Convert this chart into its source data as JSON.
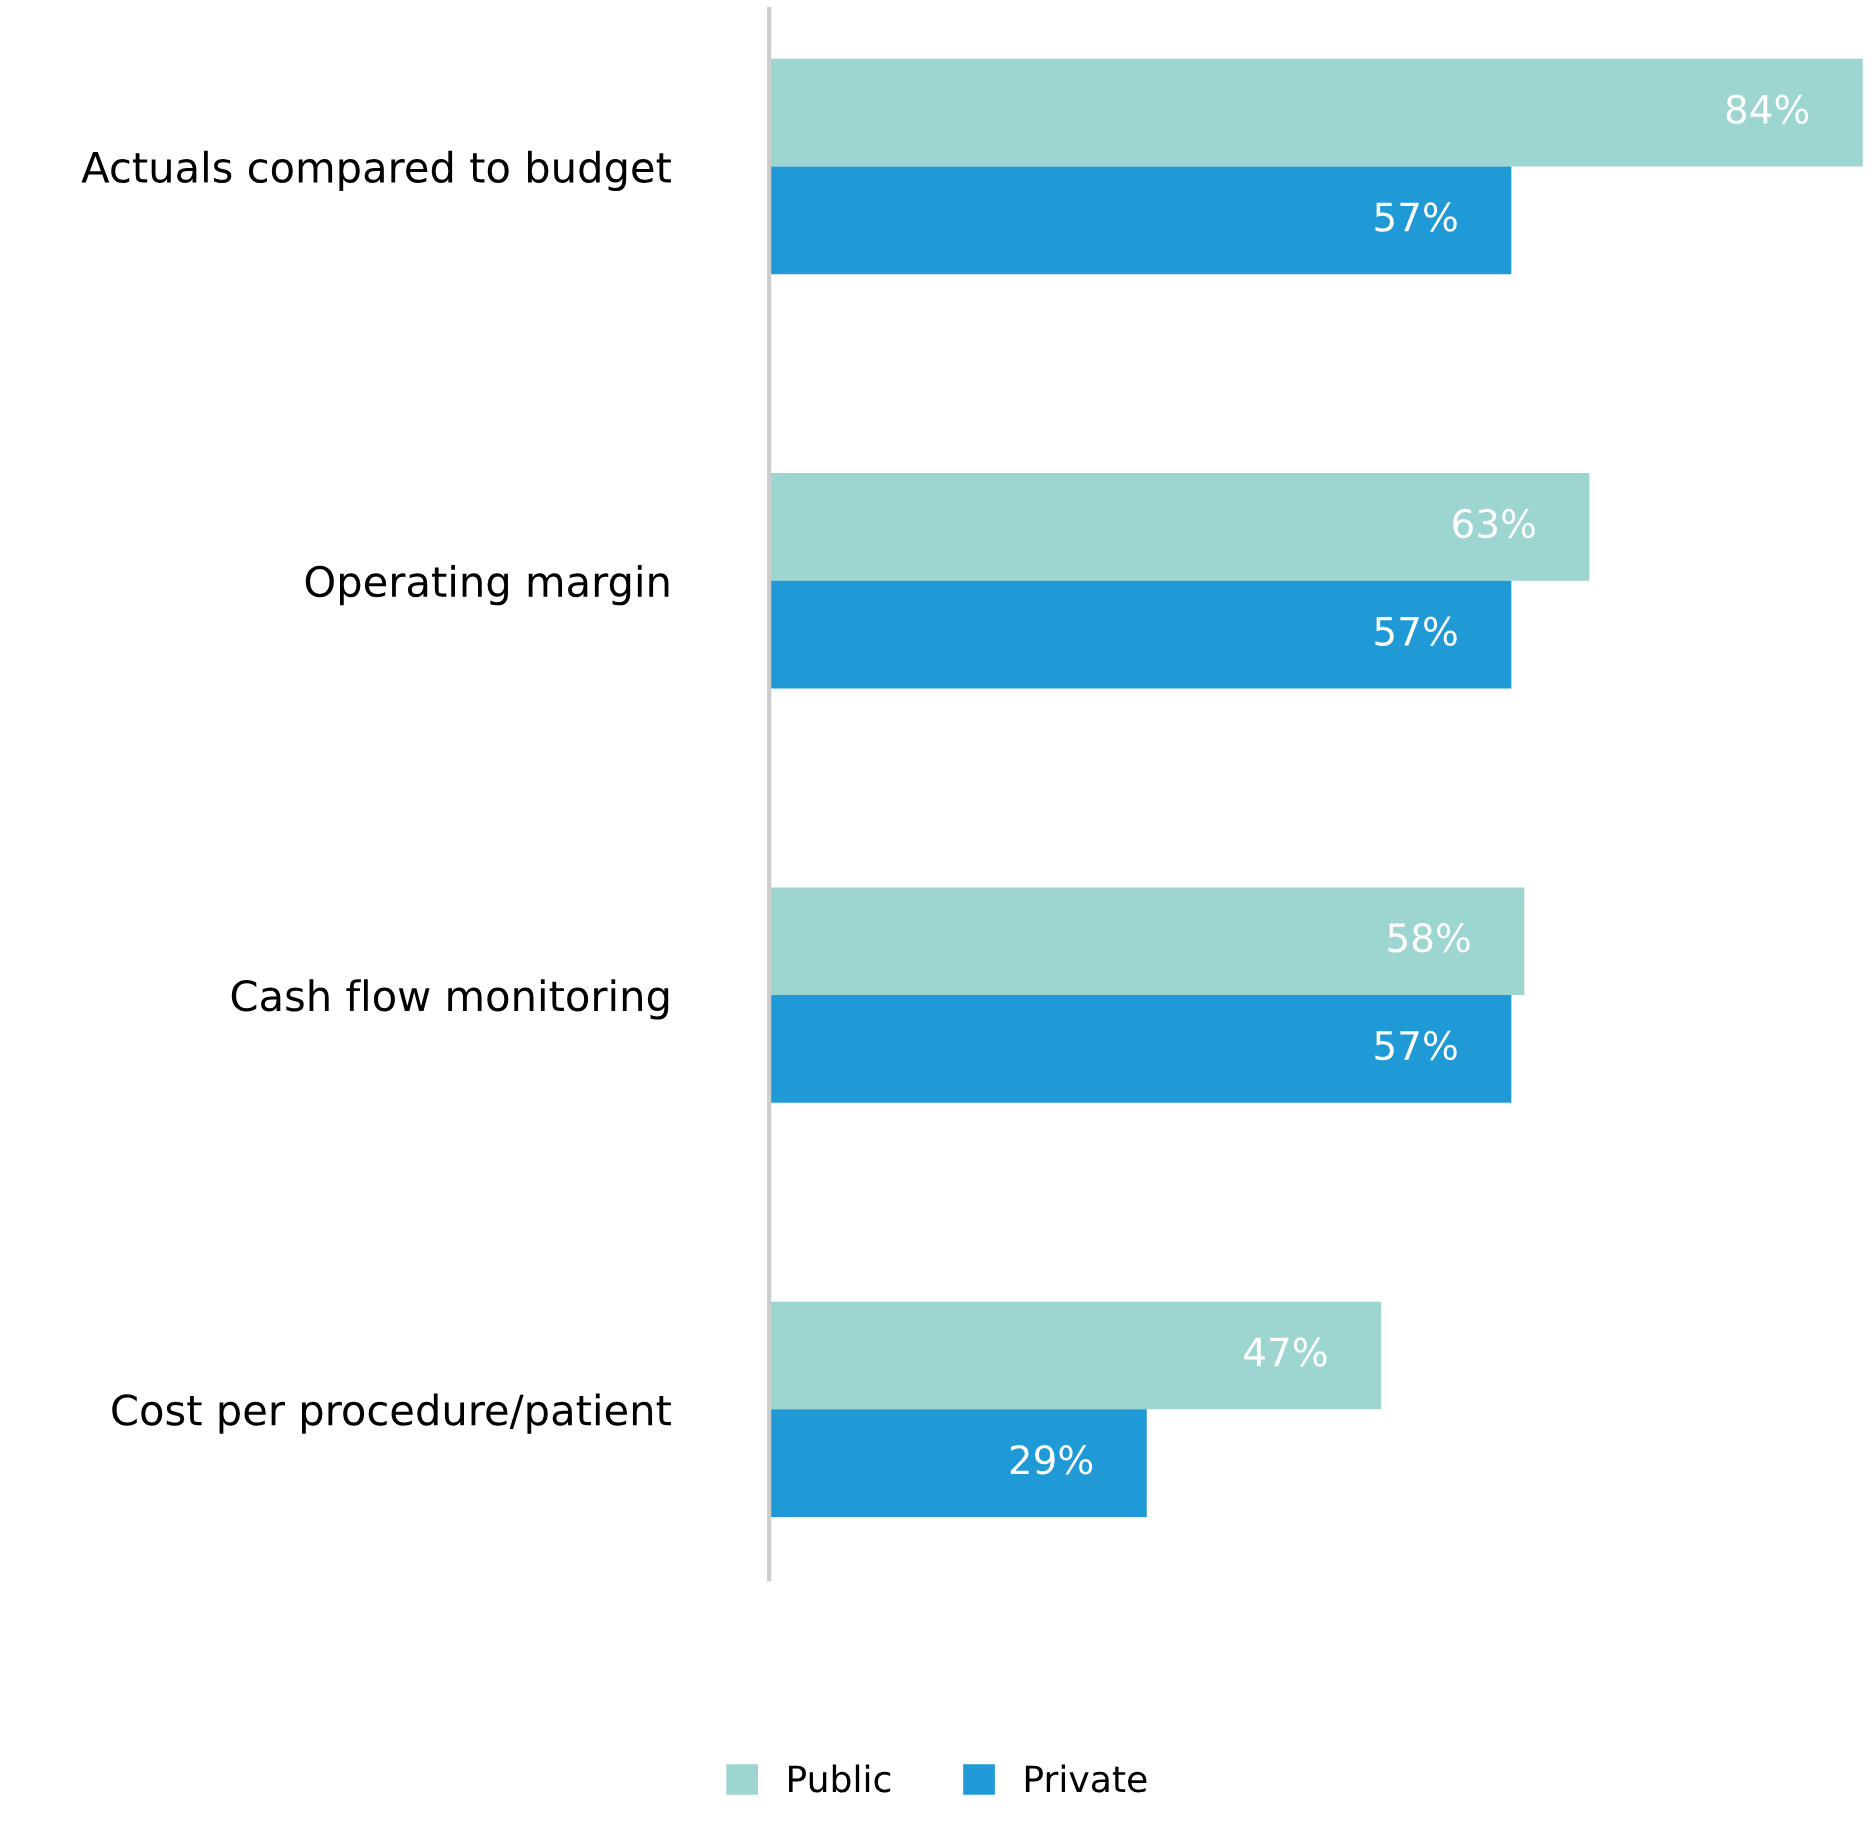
{
  "chart_data": {
    "type": "bar",
    "orientation": "horizontal",
    "categories": [
      "Actuals compared to budget",
      "Operating margin",
      "Cash flow monitoring",
      "Cost per procedure/patient"
    ],
    "series": [
      {
        "name": "Public",
        "color": "#9dd5d0",
        "values": [
          84,
          63,
          58,
          47
        ],
        "value_labels": [
          "84%",
          "63%",
          "58%",
          "47%"
        ]
      },
      {
        "name": "Private",
        "color": "#1f9ad6",
        "values": [
          57,
          57,
          57,
          29
        ],
        "value_labels": [
          "57%",
          "57%",
          "57%",
          "29%"
        ]
      }
    ],
    "legend": "bottom",
    "grid": false,
    "tick_labels": "y"
  }
}
